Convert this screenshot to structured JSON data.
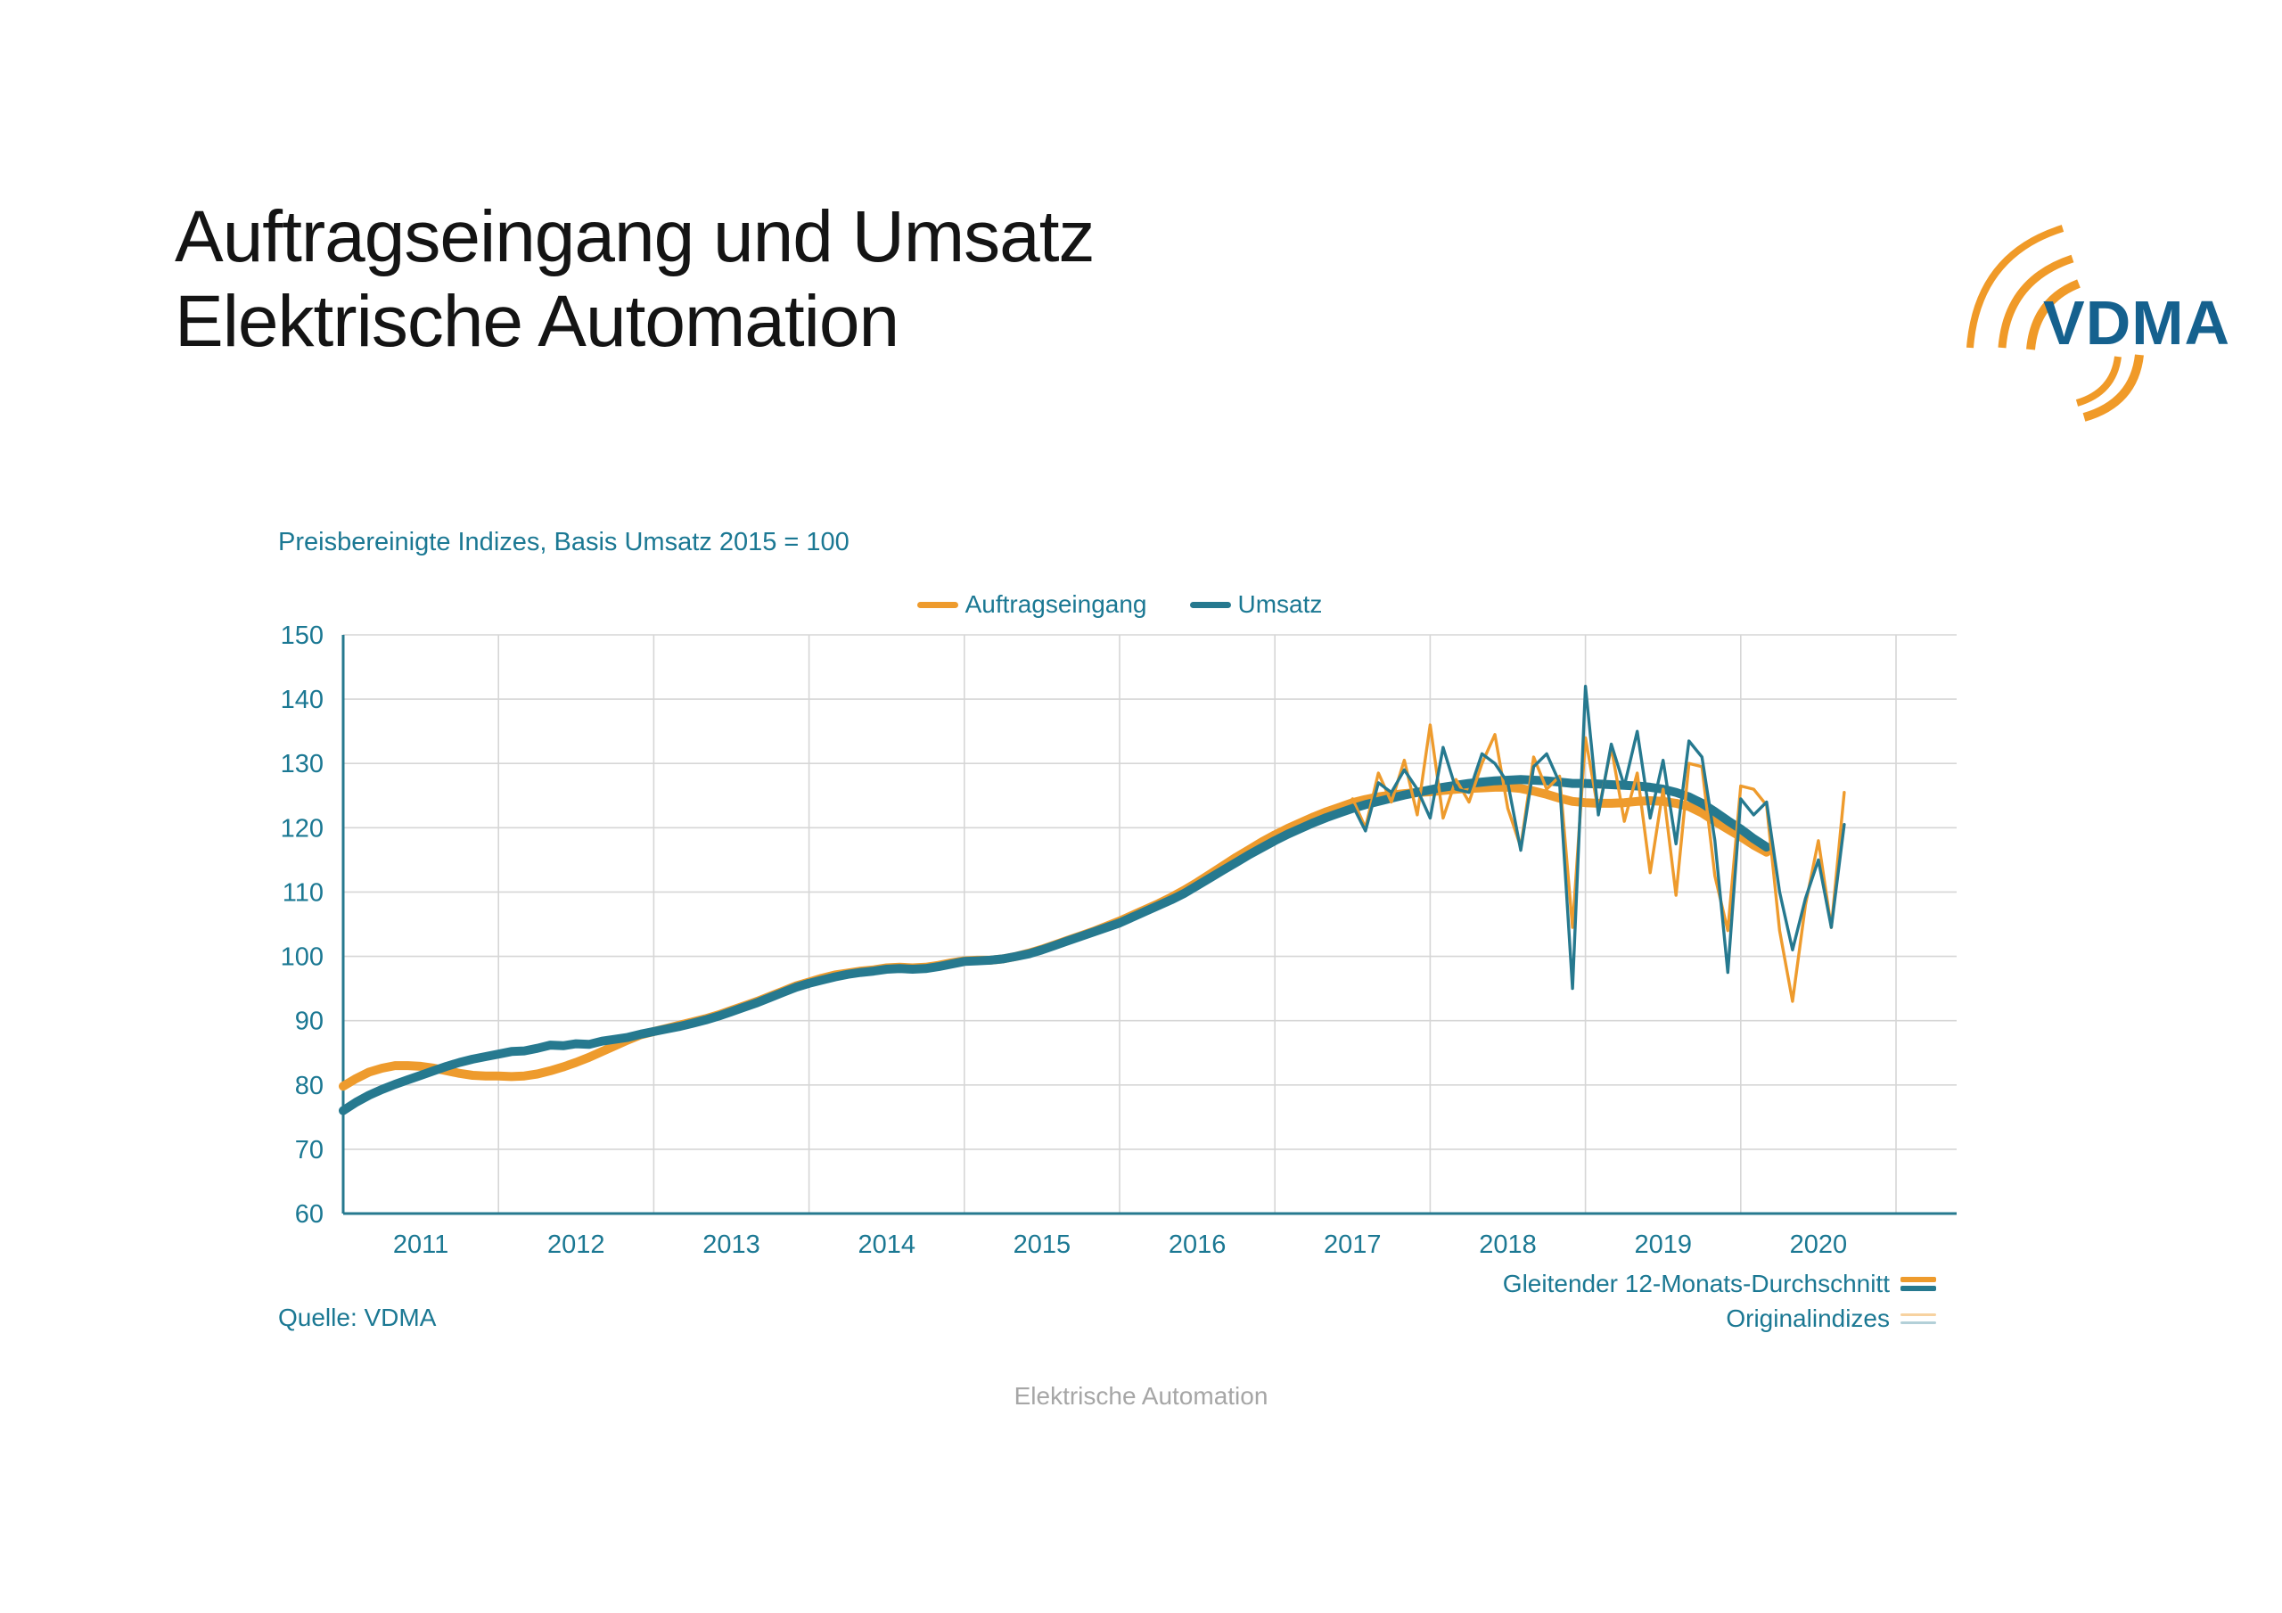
{
  "title": {
    "line1": "Auftragseingang und Umsatz",
    "line2": "Elektrische Automation"
  },
  "logo": {
    "text": "VDMA",
    "blue": "#15618e",
    "orange": "#f09a28"
  },
  "subtitle": "Preisbereinigte Indizes, Basis Umsatz 2015 = 100",
  "legend_top": {
    "series1_label": "Auftragseingang",
    "series2_label": "Umsatz"
  },
  "legend_bottom_right": {
    "row1_label": "Gleitender 12-Monats-Durchschnitt",
    "row2_label": "Originalindizes"
  },
  "source": "Quelle: VDMA",
  "footer": "Elektrische Automation",
  "chart_data": {
    "type": "line",
    "title": "Preisbereinigte Indizes, Basis Umsatz 2015 = 100",
    "ylim": [
      60,
      150
    ],
    "y_ticks": [
      150,
      140,
      130,
      120,
      110,
      100,
      90,
      80,
      70,
      60
    ],
    "x_ticks": [
      "2011",
      "2012",
      "2013",
      "2014",
      "2015",
      "2016",
      "2017",
      "2018",
      "2019",
      "2020"
    ],
    "x_months_total": 120,
    "grid": true,
    "legend_position": "top-center",
    "colors": {
      "auftragseingang": "#ee9b2d",
      "umsatz": "#26798f",
      "grid": "#d6d6d6",
      "axis": "#26798f"
    },
    "series": [
      {
        "name": "Auftragseingang - Gleitender 12-Monats-Durchschnitt",
        "color_key": "auftragseingang",
        "style": "thick",
        "start_month": "2011-01",
        "values": [
          79.8,
          81.0,
          82.0,
          82.6,
          83.0,
          83.0,
          82.9,
          82.6,
          82.2,
          81.8,
          81.5,
          81.4,
          81.4,
          81.3,
          81.4,
          81.7,
          82.2,
          82.8,
          83.5,
          84.3,
          85.2,
          86.1,
          87.0,
          87.8,
          88.3,
          88.8,
          89.3,
          89.8,
          90.3,
          90.9,
          91.6,
          92.3,
          93.0,
          93.8,
          94.6,
          95.4,
          96.0,
          96.6,
          97.1,
          97.4,
          97.7,
          97.9,
          98.2,
          98.3,
          98.2,
          98.3,
          98.6,
          99.0,
          99.3,
          99.4,
          99.4,
          99.6,
          100.0,
          100.5,
          101.1,
          101.8,
          102.5,
          103.2,
          103.9,
          104.7,
          105.5,
          106.4,
          107.3,
          108.2,
          109.2,
          110.3,
          111.5,
          112.8,
          114.1,
          115.4,
          116.6,
          117.8,
          118.9,
          119.9,
          120.8,
          121.7,
          122.5,
          123.2,
          123.9,
          124.4,
          124.8,
          125.1,
          125.3,
          125.5,
          125.6,
          125.8,
          126.0,
          126.1,
          126.2,
          126.3,
          126.3,
          126.1,
          125.7,
          125.2,
          124.6,
          124.1,
          123.9,
          123.8,
          123.8,
          123.9,
          124.1,
          124.2,
          124.1,
          123.8,
          123.3,
          122.3,
          121.0,
          119.8,
          118.6,
          117.3,
          116.2
        ]
      },
      {
        "name": "Umsatz - Gleitender 12-Monats-Durchschnitt",
        "color_key": "umsatz",
        "style": "thick",
        "start_month": "2011-01",
        "values": [
          76.0,
          77.3,
          78.4,
          79.3,
          80.1,
          80.8,
          81.5,
          82.2,
          82.9,
          83.5,
          84.0,
          84.4,
          84.8,
          85.2,
          85.3,
          85.7,
          86.2,
          86.1,
          86.4,
          86.3,
          86.8,
          87.1,
          87.4,
          87.9,
          88.3,
          88.7,
          89.1,
          89.6,
          90.1,
          90.7,
          91.4,
          92.1,
          92.8,
          93.6,
          94.4,
          95.2,
          95.8,
          96.3,
          96.8,
          97.2,
          97.5,
          97.7,
          98.0,
          98.1,
          98.0,
          98.1,
          98.4,
          98.8,
          99.2,
          99.3,
          99.4,
          99.6,
          100.0,
          100.4,
          101.0,
          101.7,
          102.4,
          103.1,
          103.8,
          104.5,
          105.2,
          106.1,
          107.0,
          107.9,
          108.8,
          109.8,
          111.0,
          112.2,
          113.4,
          114.6,
          115.8,
          116.9,
          118.0,
          119.0,
          119.9,
          120.8,
          121.6,
          122.3,
          123.0,
          123.6,
          124.1,
          124.6,
          125.1,
          125.5,
          125.9,
          126.3,
          126.6,
          126.9,
          127.1,
          127.3,
          127.4,
          127.5,
          127.4,
          127.3,
          127.1,
          126.9,
          126.9,
          126.8,
          126.7,
          126.6,
          126.5,
          126.3,
          126.0,
          125.5,
          124.8,
          123.8,
          122.5,
          121.1,
          119.8,
          118.3,
          117.0
        ]
      },
      {
        "name": "Auftragseingang - Originalindizes",
        "color_key": "auftragseingang",
        "style": "thin",
        "start_month": "2017-07",
        "values": [
          124.5,
          120.0,
          128.5,
          124.0,
          130.5,
          122.0,
          136.0,
          121.5,
          127.5,
          124.0,
          130.0,
          134.5,
          123.0,
          117.0,
          131.0,
          126.0,
          128.0,
          104.5,
          134.0,
          122.5,
          132.5,
          121.0,
          128.5,
          113.0,
          126.0,
          109.5,
          130.0,
          129.5,
          112.5,
          104.0,
          126.5,
          126.0,
          123.5,
          104.0,
          93.0,
          108.0,
          118.0,
          104.5,
          125.5
        ]
      },
      {
        "name": "Umsatz - Originalindizes",
        "color_key": "umsatz",
        "style": "thin",
        "start_month": "2017-07",
        "values": [
          123.5,
          119.5,
          127.0,
          125.5,
          129.0,
          126.0,
          121.5,
          132.5,
          126.0,
          125.5,
          131.5,
          130.0,
          127.0,
          116.5,
          129.5,
          131.5,
          127.0,
          95.0,
          142.0,
          122.0,
          133.0,
          126.5,
          135.0,
          121.5,
          130.5,
          117.5,
          133.5,
          131.0,
          118.0,
          97.5,
          124.5,
          122.0,
          124.0,
          110.0,
          101.0,
          109.0,
          115.0,
          104.5,
          120.5
        ]
      }
    ]
  }
}
